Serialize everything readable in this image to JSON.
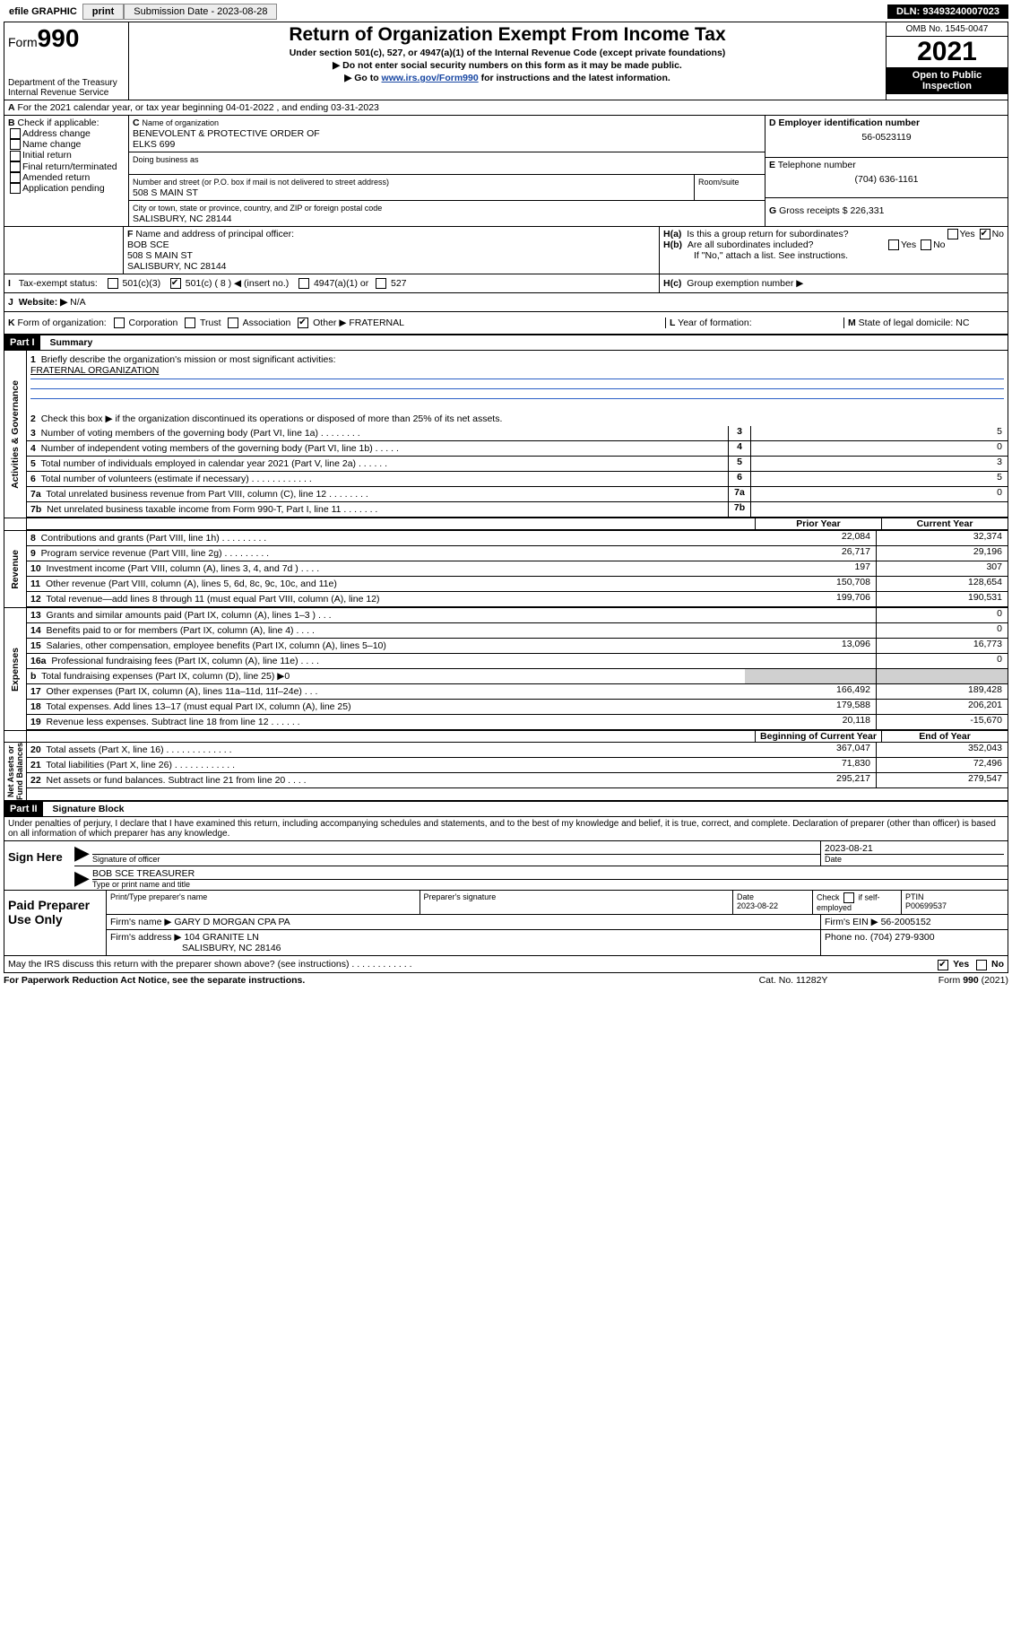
{
  "toolbar": {
    "efile": "efile GRAPHIC",
    "print": "print",
    "subdate_lbl": "Submission Date - 2023-08-28",
    "dln": "DLN: 93493240007023"
  },
  "header": {
    "form": "Form",
    "num": "990",
    "title": "Return of Organization Exempt From Income Tax",
    "sub1": "Under section 501(c), 527, or 4947(a)(1) of the Internal Revenue Code (except private foundations)",
    "sub2": "▶ Do not enter social security numbers on this form as it may be made public.",
    "sub3a": "▶ Go to",
    "sub3b": "www.irs.gov/Form990",
    "sub3c": "for instructions and the latest information.",
    "dept": "Department of the Treasury\nInternal Revenue Service",
    "omb": "OMB No. 1545-0047",
    "year": "2021",
    "inspect": "Open to Public Inspection"
  },
  "A": {
    "line": "For the 2021 calendar year, or tax year beginning 04-01-2022   , and ending 03-31-2023"
  },
  "B": {
    "label": "Check if applicable:",
    "opts": [
      "Address change",
      "Name change",
      "Initial return",
      "Final return/terminated",
      "Amended return",
      "Application pending"
    ]
  },
  "C": {
    "hdr": "Name of organization",
    "org": "BENEVOLENT & PROTECTIVE ORDER OF\nELKS 699",
    "dba": "Doing business as",
    "street_hdr": "Number and street (or P.O. box if mail is not delivered to street address)",
    "room": "Room/suite",
    "street": "508 S MAIN ST",
    "city_hdr": "City or town, state or province, country, and ZIP or foreign postal code",
    "city": "SALISBURY, NC  28144"
  },
  "D": {
    "hdr": "Employer identification number",
    "val": "56-0523119"
  },
  "E": {
    "hdr": "Telephone number",
    "val": "(704) 636-1161"
  },
  "G": {
    "hdr": "Gross receipts $",
    "val": "226,331"
  },
  "F": {
    "hdr": "Name and address of principal officer:",
    "name": "BOB SCE",
    "addr": "508 S MAIN ST\nSALISBURY, NC  28144"
  },
  "H": {
    "a": "Is this a group return for subordinates?",
    "b": "Are all subordinates included?",
    "bnote": "If \"No,\" attach a list. See instructions.",
    "c": "Group exemption number ▶",
    "yes": "Yes",
    "no": "No"
  },
  "I": {
    "hdr": "Tax-exempt status:",
    "c1": "501(c)(3)",
    "c2": "501(c) ( 8 ) ◀ (insert no.)",
    "c3": "4947(a)(1) or",
    "c4": "527"
  },
  "J": {
    "hdr": "Website: ▶",
    "val": "N/A"
  },
  "K": {
    "hdr": "Form of organization:",
    "opts": [
      "Corporation",
      "Trust",
      "Association",
      "Other ▶"
    ],
    "val": "FRATERNAL"
  },
  "L": {
    "hdr": "Year of formation:"
  },
  "M": {
    "hdr": "State of legal domicile:",
    "val": "NC"
  },
  "part1": {
    "hdr": "Part I",
    "title": "Summary",
    "q1": "Briefly describe the organization's mission or most significant activities:",
    "q1v": "FRATERNAL ORGANIZATION",
    "q2": "Check this box ▶        if the organization discontinued its operations or disposed of more than 25% of its net assets.",
    "rows_single": [
      {
        "n": "3",
        "t": "Number of voting members of the governing body (Part VI, line 1a)   .    .    .    .    .    .    .    .",
        "v": "5"
      },
      {
        "n": "4",
        "t": "Number of independent voting members of the governing body (Part VI, line 1b)   .    .    .    .    .",
        "v": "0"
      },
      {
        "n": "5",
        "t": "Total number of individuals employed in calendar year 2021 (Part V, line 2a)   .    .    .    .    .    .",
        "v": "3"
      },
      {
        "n": "6",
        "t": "Total number of volunteers (estimate if necessary)   .    .    .    .    .    .    .    .    .    .    .    .",
        "v": "5"
      },
      {
        "n": "7a",
        "t": "Total unrelated business revenue from Part VIII, column (C), line 12   .    .    .    .    .    .    .    .",
        "v": "0"
      },
      {
        "n": "7b",
        "t": "Net unrelated business taxable income from Form 990-T, Part I, line 11   .    .    .    .    .    .    .",
        "v": ""
      }
    ],
    "colhdr": {
      "prior": "Prior Year",
      "curr": "Current Year",
      "boy": "Beginning of Current Year",
      "eoy": "End of Year"
    },
    "revenue": [
      {
        "n": "8",
        "t": "Contributions and grants (Part VIII, line 1h)   .    .    .    .    .    .    .    .    .",
        "p": "22,084",
        "c": "32,374"
      },
      {
        "n": "9",
        "t": "Program service revenue (Part VIII, line 2g)   .    .    .    .    .    .    .    .    .",
        "p": "26,717",
        "c": "29,196"
      },
      {
        "n": "10",
        "t": "Investment income (Part VIII, column (A), lines 3, 4, and 7d )   .    .    .    .",
        "p": "197",
        "c": "307"
      },
      {
        "n": "11",
        "t": "Other revenue (Part VIII, column (A), lines 5, 6d, 8c, 9c, 10c, and 11e)",
        "p": "150,708",
        "c": "128,654"
      },
      {
        "n": "12",
        "t": "Total revenue—add lines 8 through 11 (must equal Part VIII, column (A), line 12)",
        "p": "199,706",
        "c": "190,531"
      }
    ],
    "expenses": [
      {
        "n": "13",
        "t": "Grants and similar amounts paid (Part IX, column (A), lines 1–3 )   .    .    .",
        "p": "",
        "c": "0"
      },
      {
        "n": "14",
        "t": "Benefits paid to or for members (Part IX, column (A), line 4)   .    .    .    .",
        "p": "",
        "c": "0"
      },
      {
        "n": "15",
        "t": "Salaries, other compensation, employee benefits (Part IX, column (A), lines 5–10)",
        "p": "13,096",
        "c": "16,773"
      },
      {
        "n": "16a",
        "t": "Professional fundraising fees (Part IX, column (A), line 11e)   .    .    .    .",
        "p": "",
        "c": "0"
      },
      {
        "n": "b",
        "t": "Total fundraising expenses (Part IX, column (D), line 25) ▶0",
        "p": "GREY",
        "c": "GREY"
      },
      {
        "n": "17",
        "t": "Other expenses (Part IX, column (A), lines 11a–11d, 11f–24e)   .    .    .",
        "p": "166,492",
        "c": "189,428"
      },
      {
        "n": "18",
        "t": "Total expenses. Add lines 13–17 (must equal Part IX, column (A), line 25)",
        "p": "179,588",
        "c": "206,201"
      },
      {
        "n": "19",
        "t": "Revenue less expenses. Subtract line 18 from line 12   .    .    .    .    .    .",
        "p": "20,118",
        "c": "-15,670"
      }
    ],
    "net": [
      {
        "n": "20",
        "t": "Total assets (Part X, line 16)   .    .    .    .    .    .    .    .    .    .    .    .    .",
        "p": "367,047",
        "c": "352,043"
      },
      {
        "n": "21",
        "t": "Total liabilities (Part X, line 26)   .    .    .    .    .    .    .    .    .    .    .    .",
        "p": "71,830",
        "c": "72,496"
      },
      {
        "n": "22",
        "t": "Net assets or fund balances. Subtract line 21 from line 20   .    .    .    .",
        "p": "295,217",
        "c": "279,547"
      }
    ],
    "sidelabels": {
      "gov": "Activities & Governance",
      "rev": "Revenue",
      "exp": "Expenses",
      "net": "Net Assets or\nFund Balances"
    }
  },
  "part2": {
    "hdr": "Part II",
    "title": "Signature Block",
    "decl": "Under penalties of perjury, I declare that I have examined this return, including accompanying schedules and statements, and to the best of my knowledge and belief, it is true, correct, and complete. Declaration of preparer (other than officer) is based on all information of which preparer has any knowledge.",
    "sign": "Sign Here",
    "sigoff": "Signature of officer",
    "date": "Date",
    "sigdate": "2023-08-21",
    "name": "BOB SCE TREASURER",
    "nametitle": "Type or print name and title",
    "paid": "Paid Preparer Use Only",
    "c1": "Print/Type preparer's name",
    "c2": "Preparer's signature",
    "c3": "Date",
    "c3v": "2023-08-22",
    "c4a": "Check",
    "c4b": "if self-employed",
    "c5": "PTIN",
    "c5v": "P00699537",
    "firm": "Firm's name   ▶",
    "firmv": "GARY D MORGAN CPA PA",
    "fein": "Firm's EIN ▶",
    "feinv": "56-2005152",
    "faddr": "Firm's address ▶",
    "faddrv": "104 GRANITE LN",
    "faddr2": "SALISBURY, NC  28146",
    "phone": "Phone no.",
    "phonev": "(704) 279-9300",
    "may": "May the IRS discuss this return with the preparer shown above? (see instructions)   .    .    .    .    .    .    .    .    .    .    .    ."
  },
  "footer": {
    "pra": "For Paperwork Reduction Act Notice, see the separate instructions.",
    "cat": "Cat. No. 11282Y",
    "form": "Form 990 (2021)"
  }
}
